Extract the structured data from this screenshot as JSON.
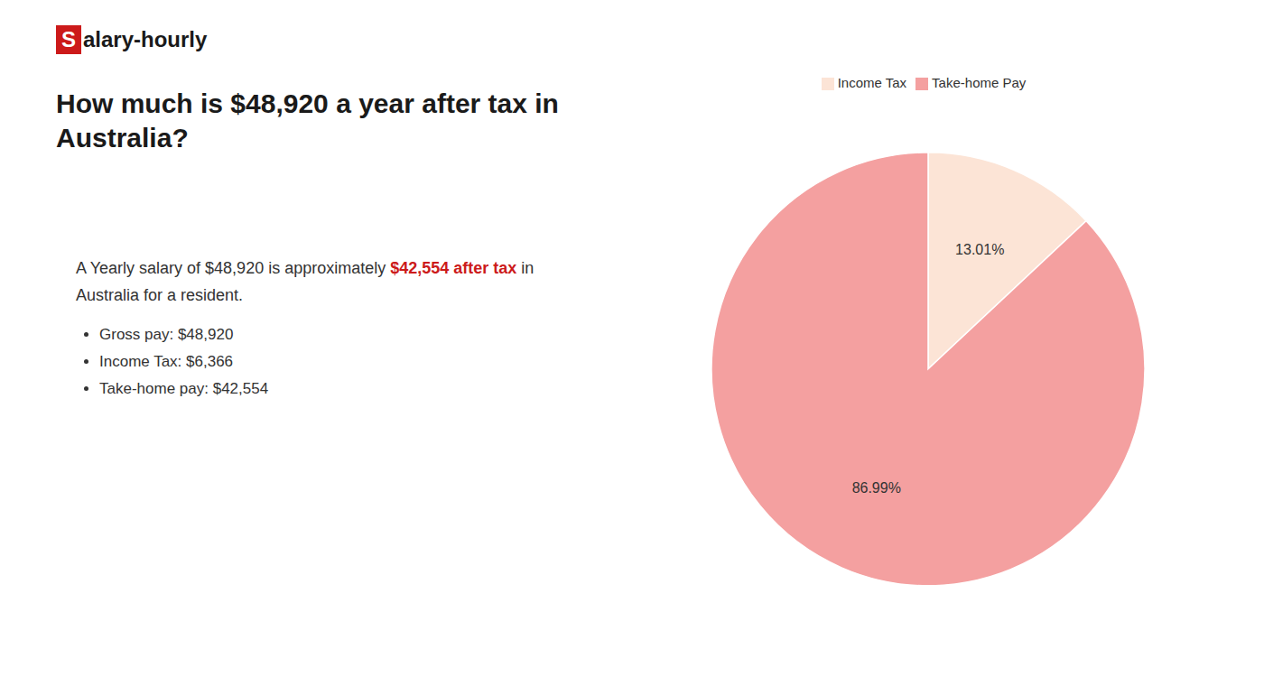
{
  "chart_data": {
    "type": "pie",
    "title": "How much is $48,920 a year after tax in\nAustralia?",
    "annotations": [
      {
        "text": "S",
        "color": "#cc1a1a"
      },
      {
        "text": "alary-hourly"
      },
      {
        "text": "A Yearly salary of $48,920 is approximately "
      },
      {
        "text": "$42,554 after tax",
        "color": "#cc1a1a"
      },
      {
        "text": " in"
      },
      {
        "text": "Australia for a resident."
      },
      {
        "text": "Gross pay: $48,920"
      },
      {
        "text": "Income Tax: $6,366"
      },
      {
        "text": "Take-home pay: $42,554"
      }
    ],
    "categories": [
      "Income Tax",
      "Take-home Pay"
    ],
    "values": [
      13.01,
      86.99
    ],
    "value_labels": [
      "13.01%",
      "86.99%"
    ],
    "colors": [
      "#fce4d6",
      "#f4a0a0"
    ],
    "data_labels": true,
    "legend": "top"
  }
}
